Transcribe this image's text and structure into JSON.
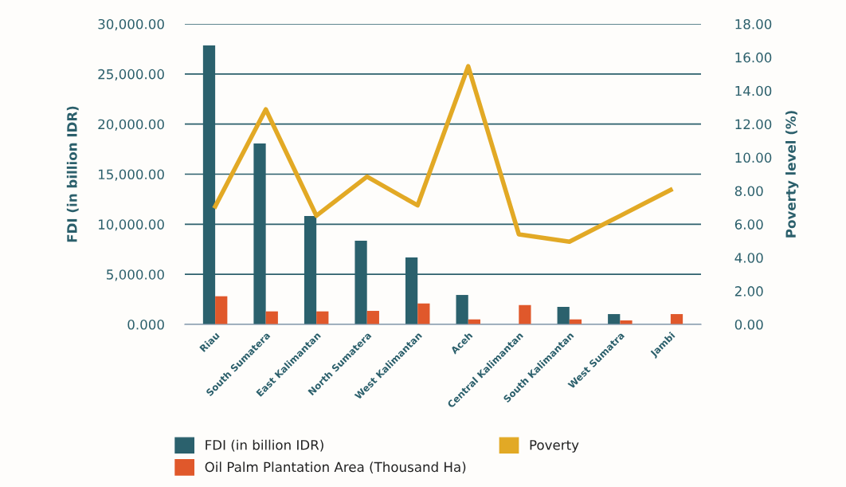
{
  "chart_data": {
    "type": "bar",
    "categories": [
      "Riau",
      "South Sumatera",
      "East Kalimantan",
      "North Sumatera",
      "West Kalimantan",
      "Aceh",
      "Central Kalimantan",
      "South Kalimantan",
      "West Sumatra",
      "Jambi"
    ],
    "series": [
      {
        "name": "FDI (in billion IDR)",
        "color": "#2b616d",
        "values": [
          27850,
          18060,
          10820,
          8350,
          6680,
          2940,
          0,
          1750,
          1030,
          0
        ]
      },
      {
        "name": "Oil Palm Plantation Area (Thousand Ha)",
        "color": "#e0582b",
        "values": [
          2810,
          1300,
          1300,
          1350,
          2090,
          500,
          1930,
          500,
          400,
          1030
        ]
      },
      {
        "name": "Poverty",
        "type": "line",
        "axis": "y2",
        "color": "#e2a925",
        "values": [
          7.07,
          12.88,
          6.51,
          8.85,
          7.13,
          15.46,
          5.4,
          4.95,
          6.5,
          8.06
        ]
      }
    ],
    "ylabel": "FDI (in billion IDR)",
    "y2label": "Poverty level (%)",
    "ylim": [
      0,
      30000
    ],
    "yticks": [
      {
        "value": 0,
        "label": "0.000"
      },
      {
        "value": 5000,
        "label": "5,000.00"
      },
      {
        "value": 10000,
        "label": "10,000.00"
      },
      {
        "value": 15000,
        "label": "15,000.00"
      },
      {
        "value": 20000,
        "label": "20,000.00"
      },
      {
        "value": 25000,
        "label": "25,000.00"
      },
      {
        "value": 30000,
        "label": "30,000.00"
      }
    ],
    "y2lim": [
      0,
      18
    ],
    "y2ticks": [
      {
        "value": 0,
        "label": "0.00"
      },
      {
        "value": 2,
        "label": "2.00"
      },
      {
        "value": 4,
        "label": "4.00"
      },
      {
        "value": 6,
        "label": "6.00"
      },
      {
        "value": 8,
        "label": "8.00"
      },
      {
        "value": 10,
        "label": "10.00"
      },
      {
        "value": 12,
        "label": "12.00"
      },
      {
        "value": 14,
        "label": "14.00"
      },
      {
        "value": 16,
        "label": "16.00"
      },
      {
        "value": 18,
        "label": "18.00"
      }
    ],
    "grid": "y",
    "legend": "bottom",
    "marker": "none",
    "line_style": "solid"
  }
}
